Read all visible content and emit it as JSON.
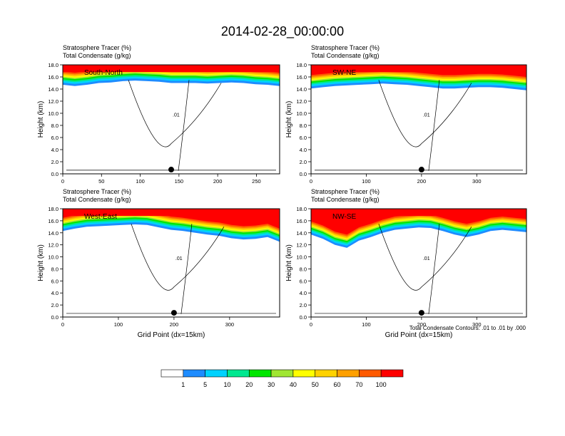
{
  "title": "2014-02-28_00:00:00",
  "labels": {
    "field1": "Stratosphere Tracer   (%)",
    "field2": "Total Condensate   (g/kg)",
    "ylabel": "Height (km)",
    "xlabel": "Grid Point (dx=15km)",
    "contour_note": "Total Condensate Contours: .01 to .01 by .000",
    "contour_label": ".01"
  },
  "colorbar": {
    "colors": [
      "#ffffff",
      "#1e8cff",
      "#00d2ff",
      "#00e890",
      "#00e600",
      "#a0e632",
      "#ffff00",
      "#ffd200",
      "#ffa000",
      "#ff5a00",
      "#ff0000"
    ],
    "labels": [
      "1",
      "5",
      "10",
      "20",
      "30",
      "40",
      "50",
      "60",
      "70",
      "100"
    ]
  },
  "chart_data": [
    {
      "type": "heatmap",
      "name": "South-North",
      "xlim": [
        0,
        280
      ],
      "ylim": [
        0,
        18
      ],
      "xticks": [
        "0",
        "50",
        "100",
        "150",
        "200",
        "250"
      ],
      "yticks": [
        "0.0",
        "2.0",
        "4.0",
        "6.0",
        "8.0",
        "10.0",
        "12.0",
        "14.0",
        "16.0",
        "18.0"
      ],
      "marker_x": 140,
      "tropopause_km": [
        15.2,
        15.0,
        15.2,
        15.5,
        15.6,
        15.8,
        15.9,
        15.8,
        15.7,
        15.5,
        15.5,
        15.5,
        15.4,
        15.5,
        15.6,
        15.5,
        15.3,
        15.2,
        15.0
      ]
    },
    {
      "type": "heatmap",
      "name": "SW-NE",
      "xlim": [
        0,
        390
      ],
      "ylim": [
        0,
        18
      ],
      "xticks": [
        "0",
        "100",
        "200",
        "300"
      ],
      "yticks": [
        "0.0",
        "2.0",
        "4.0",
        "6.0",
        "8.0",
        "10.0",
        "12.0",
        "14.0",
        "16.0",
        "18.0"
      ],
      "marker_x": 200,
      "tropopause_km": [
        14.6,
        14.8,
        15.0,
        15.1,
        15.2,
        15.3,
        15.4,
        15.3,
        15.2,
        15.0,
        14.8,
        14.6,
        14.6,
        14.7,
        14.8,
        14.8,
        14.7,
        14.5,
        14.3
      ]
    },
    {
      "type": "heatmap",
      "name": "West-East",
      "xlim": [
        0,
        390
      ],
      "ylim": [
        0,
        18
      ],
      "xticks": [
        "0",
        "100",
        "200",
        "300"
      ],
      "yticks": [
        "0.0",
        "2.0",
        "4.0",
        "6.0",
        "8.0",
        "10.0",
        "12.0",
        "14.0",
        "16.0",
        "18.0"
      ],
      "marker_x": 200,
      "tropopause_km": [
        14.8,
        15.2,
        15.5,
        15.6,
        15.7,
        15.8,
        15.9,
        15.8,
        15.4,
        15.0,
        14.8,
        14.5,
        14.2,
        14.0,
        13.6,
        13.4,
        13.5,
        13.8,
        13.0
      ]
    },
    {
      "type": "heatmap",
      "name": "NW-SE",
      "xlim": [
        0,
        390
      ],
      "ylim": [
        0,
        18
      ],
      "xticks": [
        "0",
        "100",
        "200",
        "300"
      ],
      "yticks": [
        "0.0",
        "2.0",
        "4.0",
        "6.0",
        "8.0",
        "10.0",
        "12.0",
        "14.0",
        "16.0",
        "18.0"
      ],
      "marker_x": 200,
      "tropopause_km": [
        14.2,
        13.5,
        12.5,
        12.0,
        13.2,
        13.8,
        14.5,
        15.0,
        15.2,
        15.4,
        15.3,
        14.8,
        14.2,
        13.8,
        14.2,
        14.8,
        15.0,
        14.8,
        14.6
      ]
    }
  ]
}
